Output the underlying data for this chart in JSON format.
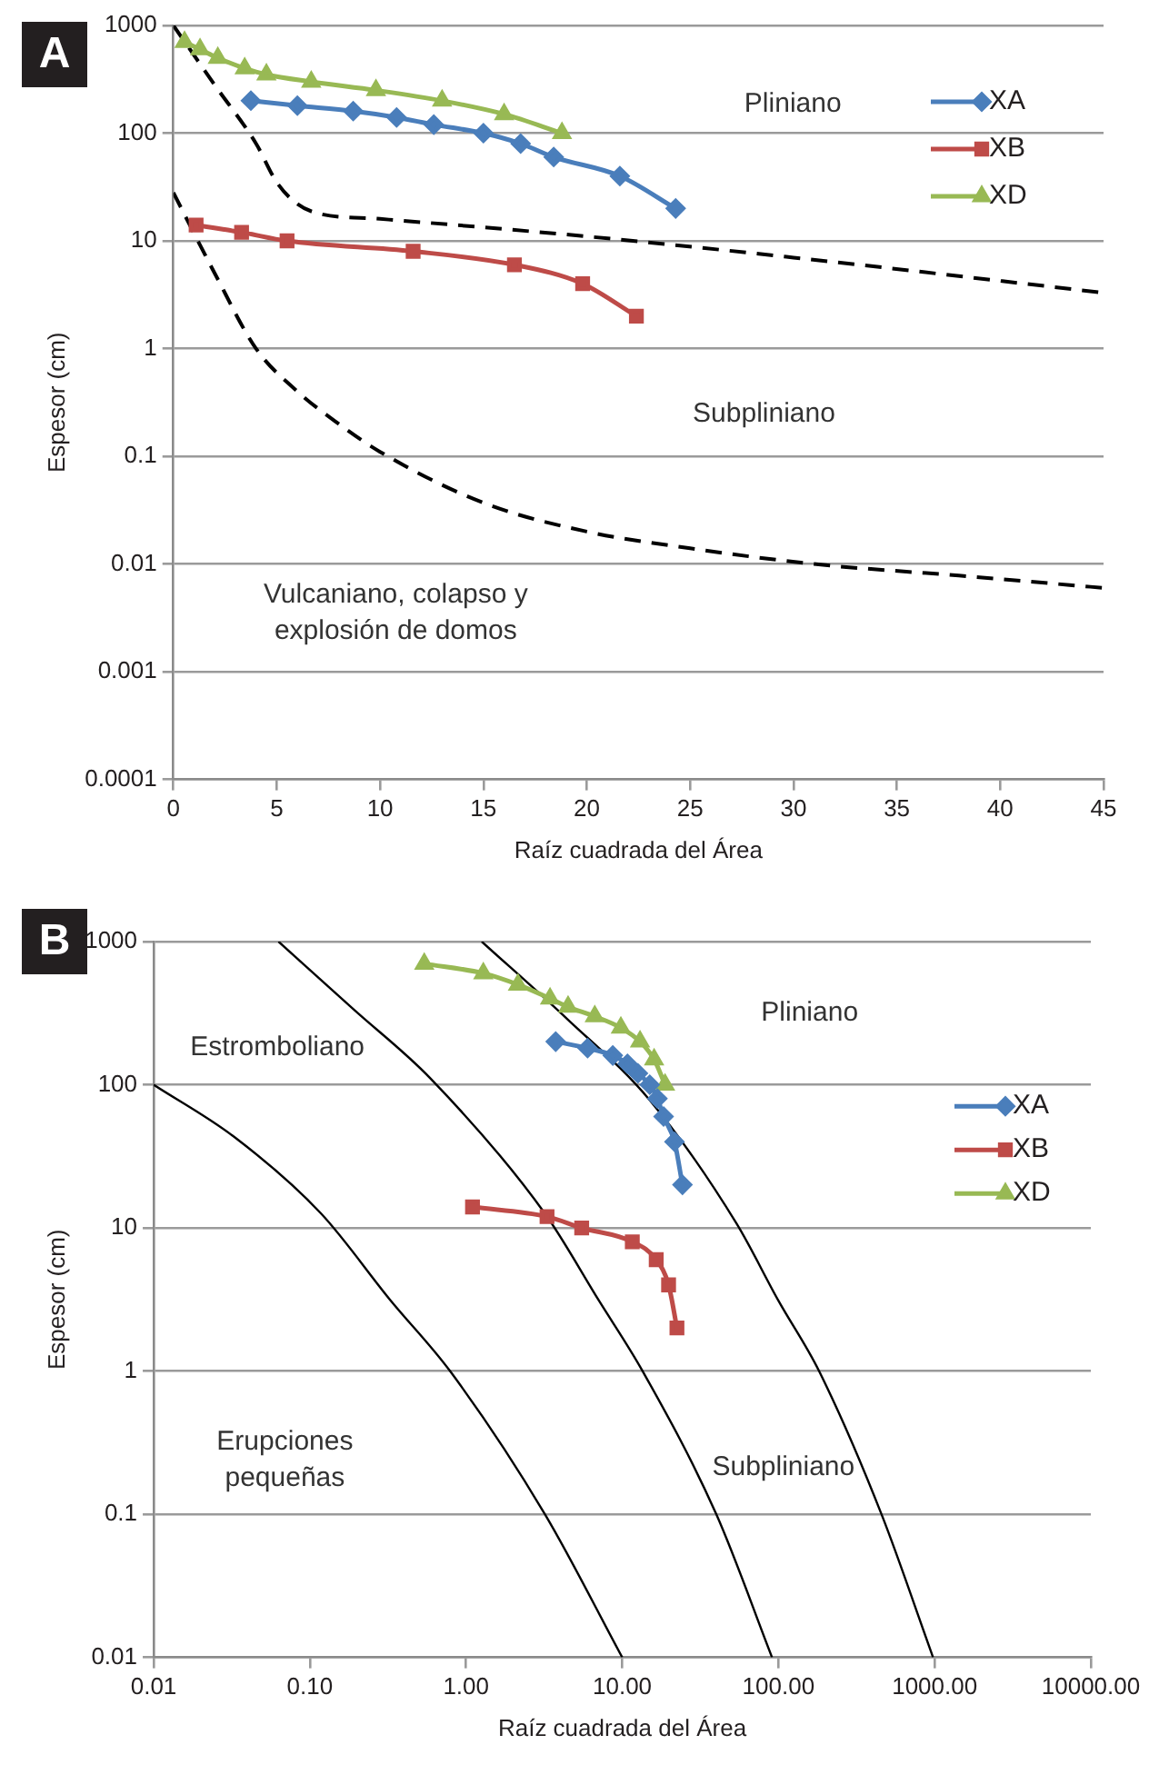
{
  "chart_data": [
    {
      "type": "line",
      "title": "A",
      "xlabel": "Raíz cuadrada del Área",
      "ylabel": "Espesor (cm)",
      "log": "y",
      "grid": "y",
      "legend": "top right",
      "xlim": [
        0,
        45
      ],
      "xticks": [
        0,
        5,
        10,
        15,
        20,
        25,
        30,
        35,
        40,
        45
      ],
      "ylim": [
        0.0001,
        1000
      ],
      "yticks": [
        0.0001,
        0.001,
        0.01,
        0.1,
        1,
        10,
        100,
        1000
      ],
      "series": [
        {
          "name": "XA",
          "color": "#4a7ebb",
          "marker": "diamond",
          "x": [
            3.75,
            6.0,
            8.7,
            10.8,
            12.6,
            15.0,
            16.8,
            18.4,
            21.6,
            24.3
          ],
          "values": [
            200,
            180,
            160,
            140,
            120,
            100,
            80,
            60,
            40,
            20
          ]
        },
        {
          "name": "XB",
          "color": "#be4b48",
          "marker": "square",
          "x": [
            1.1,
            3.3,
            5.5,
            11.6,
            16.5,
            19.8,
            22.4
          ],
          "values": [
            14,
            12,
            10,
            8,
            6,
            4,
            2
          ]
        },
        {
          "name": "XD",
          "color": "#98b954",
          "marker": "triangle",
          "x": [
            0.54,
            1.29,
            2.15,
            3.45,
            4.5,
            6.67,
            9.8,
            13.0,
            16.0,
            18.8
          ],
          "values": [
            700,
            600,
            500,
            400,
            350,
            300,
            250,
            200,
            150,
            100
          ]
        },
        {
          "color": "#000000",
          "marker": "none",
          "line_style": "dashed",
          "x": [
            0,
            2,
            4,
            5,
            6,
            7,
            10,
            20,
            30,
            45
          ],
          "values": [
            1000,
            280,
            80,
            35,
            22,
            18,
            16,
            11,
            7,
            3.3
          ]
        },
        {
          "color": "#000000",
          "marker": "none",
          "line_style": "dashed",
          "x": [
            0,
            2,
            4,
            6,
            8,
            10,
            15,
            20,
            25,
            31,
            38,
            45
          ],
          "values": [
            28,
            5,
            1,
            0.4,
            0.2,
            0.11,
            0.037,
            0.02,
            0.014,
            0.01,
            0.0078,
            0.006
          ]
        }
      ],
      "annotations": [
        "Pliniano",
        "Subpliniano",
        "Vulcaniano, colapso y\nexplosión de domos"
      ]
    },
    {
      "type": "line",
      "title": "B",
      "xlabel": "Raíz cuadrada del Área",
      "ylabel": "Espesor (cm)",
      "log": "xy",
      "grid": "y",
      "legend": "right",
      "xlim": [
        0.01,
        10000
      ],
      "xticks": [
        {
          "value": 0.01,
          "label": "0.01"
        },
        {
          "value": 0.1,
          "label": "0.10"
        },
        {
          "value": 1,
          "label": "1.00"
        },
        {
          "value": 10,
          "label": "10.00"
        },
        {
          "value": 100,
          "label": "100.00"
        },
        {
          "value": 1000,
          "label": "1000.00"
        },
        {
          "value": 10000,
          "label": "10000.00"
        }
      ],
      "ylim": [
        0.01,
        1000
      ],
      "yticks": [
        0.01,
        0.1,
        1,
        10,
        100,
        1000
      ],
      "series": [
        {
          "name": "XA",
          "color": "#4a7ebb",
          "marker": "diamond",
          "x": [
            3.75,
            6.0,
            8.7,
            10.8,
            12.6,
            15.0,
            16.8,
            18.4,
            21.6,
            24.3
          ],
          "values": [
            200,
            180,
            160,
            140,
            120,
            100,
            80,
            60,
            40,
            20
          ]
        },
        {
          "name": "XB",
          "color": "#be4b48",
          "marker": "square",
          "x": [
            1.1,
            3.3,
            5.5,
            11.6,
            16.5,
            19.8,
            22.4
          ],
          "values": [
            14,
            12,
            10,
            8,
            6,
            4,
            2
          ]
        },
        {
          "name": "XD",
          "color": "#98b954",
          "marker": "triangle",
          "x": [
            0.54,
            1.29,
            2.15,
            3.45,
            4.5,
            6.67,
            9.8,
            13.0,
            16.0,
            18.8
          ],
          "values": [
            700,
            600,
            500,
            400,
            350,
            300,
            250,
            200,
            150,
            100
          ]
        },
        {
          "color": "#000000",
          "marker": "none",
          "line_style": "solid",
          "x": [
            0.01,
            0.033,
            0.118,
            0.33,
            0.79,
            3.2,
            10
          ],
          "values": [
            100,
            43,
            12.6,
            3.1,
            1,
            0.1,
            0.01
          ]
        },
        {
          "color": "#000000",
          "marker": "none",
          "line_style": "solid",
          "x": [
            0.063,
            0.19,
            0.59,
            3.2,
            7.1,
            13.5,
            40,
            91
          ],
          "values": [
            1000,
            337,
            111,
            12.6,
            3.1,
            1,
            0.1,
            0.01
          ]
        },
        {
          "color": "#000000",
          "marker": "none",
          "line_style": "solid",
          "x": [
            1.26,
            4.5,
            15,
            54,
            100,
            182,
            457,
            977
          ],
          "values": [
            1000,
            284,
            78,
            10.7,
            3.1,
            1,
            0.1,
            0.01
          ]
        }
      ],
      "annotations": [
        "Pliniano",
        "Estromboliano",
        "Erupciones\npequeñas",
        "Subpliniano"
      ]
    }
  ]
}
